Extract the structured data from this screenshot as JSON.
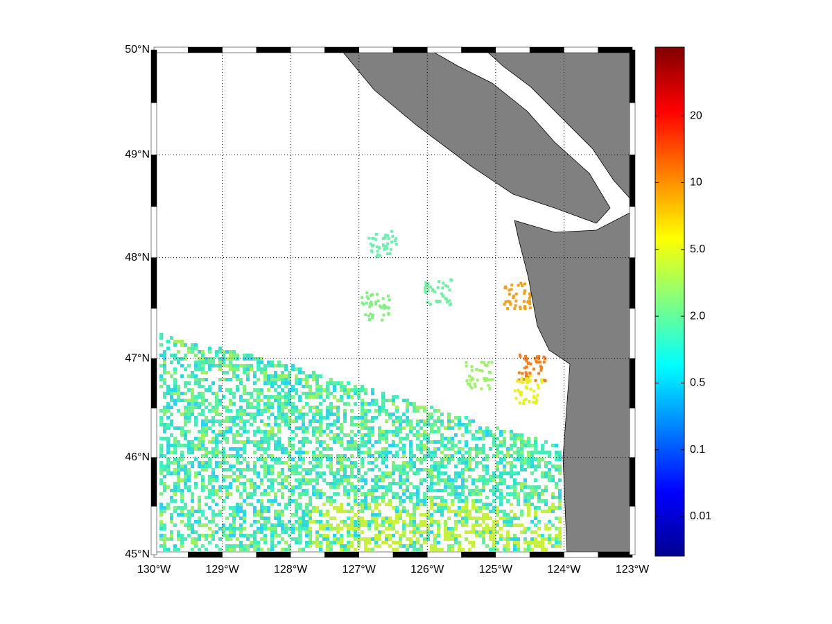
{
  "map": {
    "xticks": [
      {
        "value": -130,
        "label": "130°W"
      },
      {
        "value": -129,
        "label": "129°W"
      },
      {
        "value": -128,
        "label": "128°W"
      },
      {
        "value": -127,
        "label": "127°W"
      },
      {
        "value": -126,
        "label": "126°W"
      },
      {
        "value": -125,
        "label": "125°W"
      },
      {
        "value": -124,
        "label": "124°W"
      },
      {
        "value": -123,
        "label": "123°W"
      }
    ],
    "yticks": [
      {
        "value": 45,
        "label": "45°N"
      },
      {
        "value": 46,
        "label": "46°N"
      },
      {
        "value": 47,
        "label": "47°N"
      },
      {
        "value": 48,
        "label": "48°N"
      },
      {
        "value": 49,
        "label": "49°N"
      },
      {
        "value": 50,
        "label": "50°N"
      }
    ],
    "xlim": [
      -130,
      -123
    ],
    "ylim": [
      45,
      50
    ],
    "grid": true,
    "land_color": "#808080",
    "colorbar_ticks": [
      0.01,
      0.1,
      0.5,
      {
        "value": 2,
        "label": "2.0"
      },
      {
        "value": 5,
        "label": "5.0"
      },
      10,
      20
    ]
  }
}
